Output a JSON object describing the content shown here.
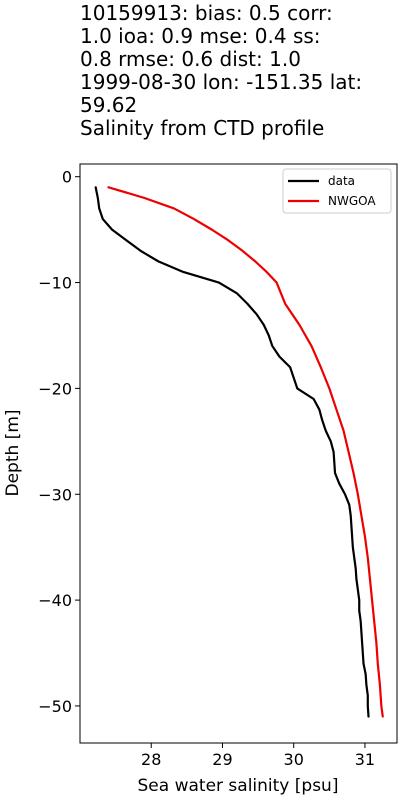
{
  "title_lines": [
    "10159913: bias: 0.5  corr:",
    "1.0  ioa: 0.9  mse: 0.4  ss:",
    "0.8  rmse: 0.6  dist: 1.0",
    "1999-08-30 lon: -151.35 lat:",
    "59.62",
    "Salinity from CTD profile"
  ],
  "chart_data": {
    "type": "line",
    "xlabel": "Sea water salinity [psu]",
    "ylabel": "Depth [m]",
    "xlim": [
      27.0,
      31.45
    ],
    "ylim": [
      -53.5,
      1.2
    ],
    "xticks": [
      28,
      29,
      30,
      31
    ],
    "yticks": [
      0,
      -10,
      -20,
      -30,
      -40,
      -50
    ],
    "grid": false,
    "legend_position": "top-right",
    "series": [
      {
        "name": "data",
        "color": "#000000",
        "points": [
          [
            27.22,
            -1
          ],
          [
            27.25,
            -2
          ],
          [
            27.27,
            -3
          ],
          [
            27.32,
            -4
          ],
          [
            27.45,
            -5
          ],
          [
            27.65,
            -6
          ],
          [
            27.85,
            -7
          ],
          [
            28.1,
            -8
          ],
          [
            28.45,
            -9
          ],
          [
            28.95,
            -10
          ],
          [
            29.2,
            -11
          ],
          [
            29.35,
            -12
          ],
          [
            29.48,
            -13
          ],
          [
            29.58,
            -14
          ],
          [
            29.65,
            -15
          ],
          [
            29.7,
            -16
          ],
          [
            29.8,
            -17
          ],
          [
            29.95,
            -18
          ],
          [
            30.0,
            -19
          ],
          [
            30.05,
            -20
          ],
          [
            30.28,
            -21
          ],
          [
            30.36,
            -22
          ],
          [
            30.4,
            -23
          ],
          [
            30.45,
            -24
          ],
          [
            30.52,
            -25
          ],
          [
            30.56,
            -26
          ],
          [
            30.57,
            -27
          ],
          [
            30.58,
            -28
          ],
          [
            30.64,
            -29
          ],
          [
            30.72,
            -30
          ],
          [
            30.78,
            -31
          ],
          [
            30.8,
            -32
          ],
          [
            30.81,
            -33
          ],
          [
            30.82,
            -34
          ],
          [
            30.83,
            -35
          ],
          [
            30.85,
            -36
          ],
          [
            30.87,
            -37
          ],
          [
            30.88,
            -38
          ],
          [
            30.9,
            -39
          ],
          [
            30.92,
            -40
          ],
          [
            30.92,
            -41
          ],
          [
            30.94,
            -42
          ],
          [
            30.95,
            -43
          ],
          [
            30.96,
            -44
          ],
          [
            30.97,
            -45
          ],
          [
            30.98,
            -46
          ],
          [
            31.01,
            -47
          ],
          [
            31.02,
            -48
          ],
          [
            31.04,
            -49
          ],
          [
            31.04,
            -50
          ],
          [
            31.05,
            -51
          ]
        ]
      },
      {
        "name": "NWGOA",
        "color": "#ee0000",
        "points": [
          [
            27.4,
            -1
          ],
          [
            27.9,
            -2
          ],
          [
            28.32,
            -3
          ],
          [
            28.6,
            -4
          ],
          [
            28.85,
            -5
          ],
          [
            29.08,
            -6
          ],
          [
            29.28,
            -7
          ],
          [
            29.46,
            -8
          ],
          [
            29.62,
            -9
          ],
          [
            29.76,
            -10
          ],
          [
            29.88,
            -12
          ],
          [
            30.08,
            -14
          ],
          [
            30.25,
            -16
          ],
          [
            30.38,
            -18
          ],
          [
            30.5,
            -20
          ],
          [
            30.6,
            -22
          ],
          [
            30.7,
            -24
          ],
          [
            30.77,
            -26
          ],
          [
            30.84,
            -28
          ],
          [
            30.9,
            -30
          ],
          [
            30.95,
            -32
          ],
          [
            31.0,
            -34
          ],
          [
            31.04,
            -36
          ],
          [
            31.07,
            -38
          ],
          [
            31.1,
            -40
          ],
          [
            31.13,
            -42
          ],
          [
            31.16,
            -44
          ],
          [
            31.18,
            -46
          ],
          [
            31.21,
            -48
          ],
          [
            31.23,
            -50
          ],
          [
            31.25,
            -51
          ]
        ]
      }
    ]
  }
}
